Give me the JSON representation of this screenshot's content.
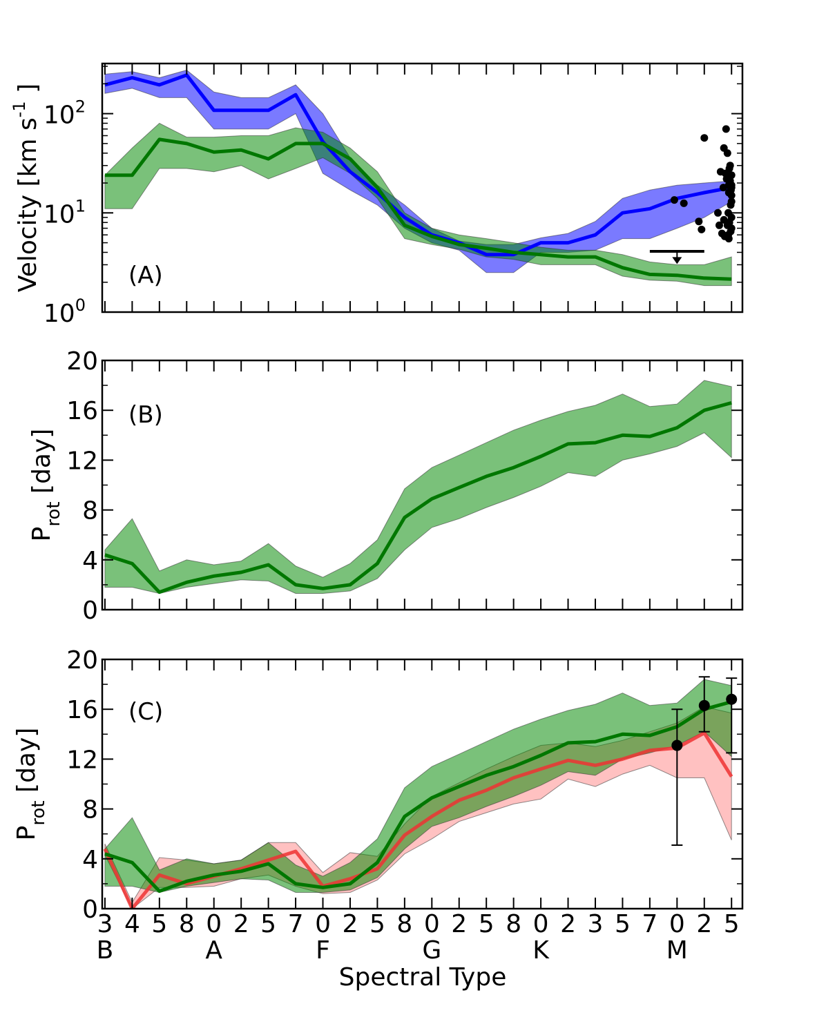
{
  "chart_data": [
    {
      "type": "line",
      "panel_label": "(A)",
      "ylabel": "Velocity [km s",
      "ylabel_sup": "-1",
      "ylabel_end": " ]",
      "yscale": "log",
      "ylim": [
        1,
        320
      ],
      "yticks": [
        1,
        10,
        100
      ],
      "ytick_labels": [
        {
          "base": "10",
          "exp": "0"
        },
        {
          "base": "10",
          "exp": "1"
        },
        {
          "base": "10",
          "exp": "2"
        }
      ],
      "series": [
        {
          "name": "blue",
          "color": "#0000ff",
          "fill": "#0000ff",
          "values": [
            195,
            230,
            195,
            245,
            108,
            108,
            108,
            155,
            52,
            26,
            16,
            9,
            6,
            5,
            3.8,
            3.8,
            5,
            5,
            6,
            10,
            11,
            14,
            16,
            18
          ],
          "upper": [
            250,
            265,
            230,
            275,
            165,
            145,
            145,
            195,
            100,
            36,
            19,
            12,
            7,
            5.2,
            4.8,
            4.8,
            5.6,
            6.2,
            8.2,
            14,
            17,
            19,
            20,
            21
          ],
          "lower": [
            160,
            180,
            145,
            145,
            70,
            70,
            70,
            100,
            25,
            17,
            12,
            7,
            5,
            4.2,
            2.5,
            2.5,
            4,
            4,
            4.2,
            5.5,
            5.5,
            7,
            9,
            13
          ]
        },
        {
          "name": "green",
          "color": "#007700",
          "fill": "#008800",
          "values": [
            24,
            24,
            55,
            50,
            41,
            43,
            35,
            50,
            50,
            35,
            18,
            7.5,
            5.8,
            4.8,
            4.4,
            4.0,
            3.8,
            3.6,
            3.6,
            2.8,
            2.4,
            2.35,
            2.2,
            2.15
          ],
          "upper": [
            24,
            45,
            80,
            58,
            58,
            60,
            60,
            72,
            65,
            45,
            26,
            10,
            7,
            6,
            5.5,
            5,
            4.5,
            4.2,
            4.2,
            3.8,
            3.2,
            3.0,
            3.0,
            3.6
          ],
          "lower": [
            11,
            11,
            28,
            28,
            26,
            30,
            22,
            28,
            36,
            25,
            14,
            5.5,
            4.8,
            4.3,
            3.6,
            3.4,
            3.0,
            3.0,
            3.0,
            2.3,
            2.1,
            2.05,
            1.85,
            1.85
          ]
        }
      ],
      "scatter": {
        "color": "#000000",
        "x": [
          20.9,
          21.25,
          21.8,
          21.9,
          22.0,
          22.5,
          22.55,
          22.6,
          22.65,
          22.7,
          22.72,
          22.72,
          22.75,
          22.78,
          22.8,
          22.82,
          22.85,
          22.85,
          22.88,
          22.88,
          22.9,
          22.9,
          22.9,
          22.92,
          22.92,
          22.95,
          22.95,
          22.97,
          22.97,
          22.98,
          23.0,
          23.0,
          23.0,
          23.0,
          23.0,
          23.0,
          23.0
        ],
        "y": [
          13.5,
          12.5,
          8.2,
          6.8,
          57,
          10,
          7.5,
          26,
          6.2,
          18,
          8.5,
          45,
          5.8,
          25,
          70,
          22,
          40,
          7.5,
          10,
          6,
          16,
          19,
          5.5,
          28,
          8,
          21,
          30,
          12,
          6.5,
          17,
          9,
          19,
          24,
          7,
          13,
          18,
          15
        ]
      },
      "upper_limit": {
        "x0": 20.0,
        "x1": 22.0,
        "y": 4.1,
        "arrow_x": 21.0,
        "arrow_to": 3.05
      }
    },
    {
      "type": "line",
      "panel_label": "(B)",
      "ylabel": "P",
      "ylabel_sub": "rot",
      "ylabel_end": " [day]",
      "ylim": [
        0,
        20
      ],
      "yticks": [
        0,
        4,
        8,
        12,
        16,
        20
      ],
      "series": [
        {
          "name": "green",
          "color": "#007700",
          "fill": "#008800",
          "values": [
            4.4,
            3.7,
            1.4,
            2.2,
            2.7,
            3.0,
            3.6,
            2.0,
            1.7,
            2.0,
            3.7,
            7.4,
            8.9,
            9.8,
            10.7,
            11.4,
            12.3,
            13.3,
            13.4,
            14.0,
            13.9,
            14.6,
            16.0,
            16.6
          ],
          "upper": [
            4.8,
            7.3,
            3.1,
            4.0,
            3.6,
            3.9,
            5.3,
            3.5,
            2.6,
            3.7,
            5.6,
            9.7,
            11.4,
            12.4,
            13.4,
            14.4,
            15.2,
            15.9,
            16.4,
            17.3,
            16.3,
            16.5,
            18.4,
            17.9
          ],
          "lower": [
            1.8,
            1.8,
            1.3,
            1.8,
            2.1,
            2.4,
            2.3,
            1.3,
            1.3,
            1.5,
            2.5,
            4.8,
            6.6,
            7.3,
            8.2,
            9.0,
            9.9,
            11.0,
            10.7,
            12.0,
            12.5,
            13.1,
            14.2,
            12.2
          ]
        }
      ]
    },
    {
      "type": "line",
      "panel_label": "(C)",
      "ylabel": "P",
      "ylabel_sub": "rot",
      "ylabel_end": " [day]",
      "ylim": [
        0,
        20
      ],
      "yticks": [
        0,
        4,
        8,
        12,
        16,
        20
      ],
      "series": [
        {
          "name": "red",
          "color": "#ee3333",
          "fill": "#ff8888",
          "values": [
            4.8,
            0.0,
            2.7,
            2.0,
            2.6,
            3.2,
            3.9,
            4.6,
            1.8,
            2.4,
            3.2,
            5.9,
            7.4,
            8.7,
            9.5,
            10.5,
            11.2,
            11.9,
            11.5,
            12.0,
            12.7,
            12.9,
            14.1,
            10.6
          ],
          "upper": [
            5.2,
            0.5,
            4.1,
            3.9,
            3.6,
            3.9,
            5.3,
            5.3,
            2.9,
            4.5,
            4.2,
            6.8,
            9.0,
            10.1,
            11.2,
            12.2,
            13.1,
            13.3,
            13.0,
            13.5,
            14.2,
            14.9,
            16.2,
            15.7
          ],
          "lower": [
            4.3,
            0.0,
            1.7,
            1.7,
            1.8,
            2.4,
            2.7,
            1.8,
            1.2,
            1.3,
            2.3,
            4.4,
            5.6,
            7.0,
            7.7,
            8.4,
            8.8,
            10.4,
            9.8,
            10.8,
            11.5,
            10.5,
            10.5,
            5.5
          ]
        },
        {
          "name": "green",
          "color": "#007700",
          "fill": "#008800",
          "values": [
            4.4,
            3.7,
            1.4,
            2.2,
            2.7,
            3.0,
            3.6,
            2.0,
            1.7,
            2.0,
            3.7,
            7.4,
            8.9,
            9.8,
            10.7,
            11.4,
            12.3,
            13.3,
            13.4,
            14.0,
            13.9,
            14.6,
            16.0,
            16.6
          ],
          "upper": [
            4.8,
            7.3,
            3.1,
            4.0,
            3.6,
            3.9,
            5.3,
            3.5,
            2.6,
            3.7,
            5.6,
            9.7,
            11.4,
            12.4,
            13.4,
            14.4,
            15.2,
            15.9,
            16.4,
            17.3,
            16.3,
            16.5,
            18.4,
            17.9
          ],
          "lower": [
            1.8,
            1.8,
            1.3,
            1.8,
            2.1,
            2.4,
            2.3,
            1.3,
            1.3,
            1.5,
            2.5,
            4.8,
            6.6,
            7.3,
            8.2,
            9.0,
            9.9,
            11.0,
            10.7,
            12.0,
            12.5,
            13.1,
            14.2,
            12.2
          ]
        }
      ],
      "errorbars": {
        "color": "#000000",
        "x": [
          21,
          22,
          23
        ],
        "y": [
          13.1,
          16.3,
          16.8
        ],
        "low": [
          5.1,
          14.2,
          12.5
        ],
        "high": [
          16.0,
          18.6,
          18.5
        ]
      }
    }
  ],
  "x_axis": {
    "xlim": [
      -0.1,
      23.4
    ],
    "tick_labels": [
      "3",
      "4",
      "5",
      "8",
      "0",
      "2",
      "5",
      "7",
      "0",
      "2",
      "5",
      "8",
      "0",
      "2",
      "5",
      "8",
      "0",
      "2",
      "3",
      "5",
      "7",
      "0",
      "2",
      "5"
    ],
    "class_labels": [
      {
        "label": "B",
        "at": 0
      },
      {
        "label": "A",
        "at": 4
      },
      {
        "label": "F",
        "at": 8
      },
      {
        "label": "G",
        "at": 12
      },
      {
        "label": "K",
        "at": 16
      },
      {
        "label": "M",
        "at": 21
      }
    ],
    "xlabel": "Spectral Type"
  }
}
